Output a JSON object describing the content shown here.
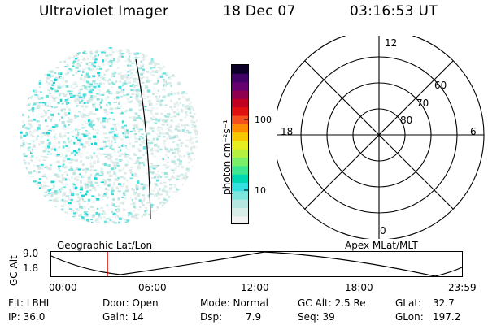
{
  "header": {
    "title": "Ultraviolet Imager",
    "date": "18 Dec 07",
    "time": "03:16:53 UT"
  },
  "colorbar": {
    "unit_label": "photon cm⁻²s⁻¹",
    "tick_labels": [
      "100",
      "10"
    ],
    "colors": [
      "#f2f2f2",
      "#d8ece8",
      "#b6e6e0",
      "#7ee6dc",
      "#33dfe0",
      "#00d8b4",
      "#3ee890",
      "#7af06a",
      "#b4f040",
      "#e6ee20",
      "#f6c800",
      "#ff8c00",
      "#f4501e",
      "#e01010",
      "#c00020",
      "#900050",
      "#660070",
      "#400066",
      "#0c0028"
    ]
  },
  "polar_plot": {
    "mlt_labels": [
      "12",
      "18",
      "6",
      "0"
    ],
    "lat_labels": [
      "60",
      "70",
      "80"
    ]
  },
  "timeline": {
    "left_title": "Geographic Lat/Lon",
    "right_title": "Apex  MLat/MLT",
    "y_axis_label": "GC Alt",
    "y_ticks": [
      "9.0",
      "1.8"
    ],
    "x_ticks": [
      "00:00",
      "06:00",
      "12:00",
      "18:00",
      "23:59"
    ],
    "marker_time": "03:16:53",
    "marker_color": "#dd0000"
  },
  "info": {
    "flt": "Flt: LBHL",
    "ip": "IP: 36.0",
    "door": "Door: Open",
    "gain": "Gain: 14",
    "mode": "Mode: Normal",
    "dsp_label": "Dsp:",
    "dsp_value": "7.9",
    "gc_alt": "GC Alt: 2.5 Re",
    "seq": "Seq: 39",
    "glat_label": "GLat:",
    "glat_value": "32.7",
    "glon_label": "GLon:",
    "glon_value": "197.2"
  }
}
